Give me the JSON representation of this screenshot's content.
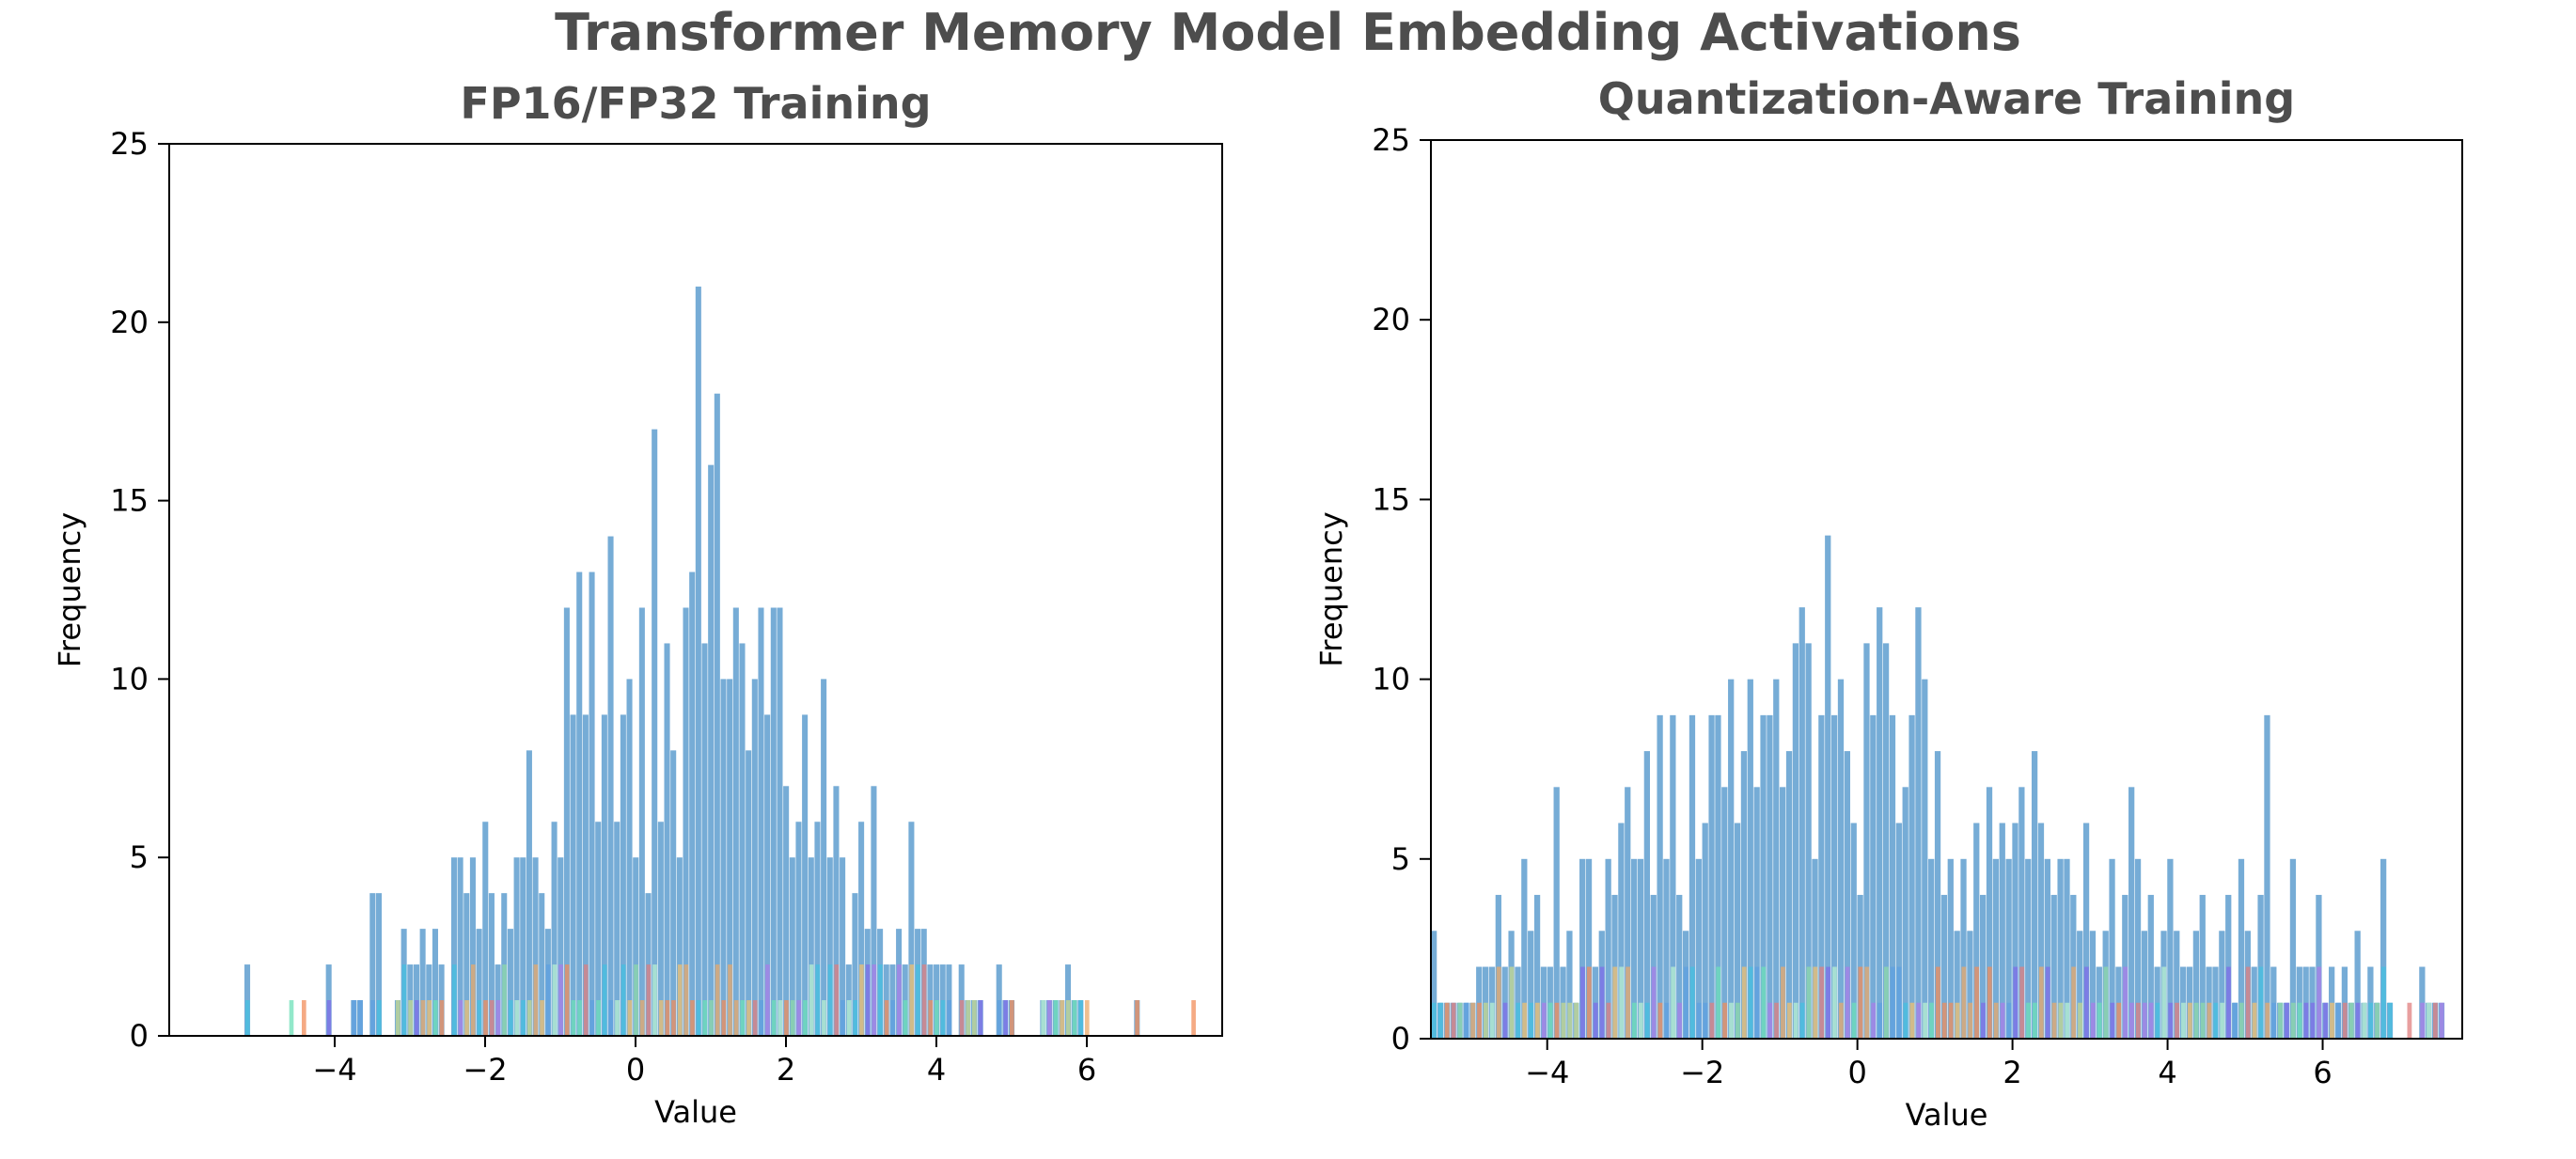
{
  "figure": {
    "title": "Transformer Memory Model Embedding Activations"
  },
  "palette": {
    "base": "#6fa8d4",
    "strips": [
      "#f28e5b",
      "#e9a96b",
      "#c6d88f",
      "#8fd9a8",
      "#6ee0b8",
      "#45c0e0",
      "#7f6ee8",
      "#a97fe8",
      "#e07f7f",
      "#f0c070",
      "#b8f0d0",
      "#5fa0e0"
    ]
  },
  "chart_data": [
    {
      "type": "bar",
      "title": "FP16/FP32 Training",
      "xlabel": "Value",
      "ylabel": "Frequency",
      "xlim": [
        -6.2,
        7.8
      ],
      "ylim": [
        0,
        25
      ],
      "xticks": [
        -4,
        -2,
        0,
        2,
        4,
        6
      ],
      "xtick_labels": [
        "−4",
        "−2",
        "0",
        "2",
        "4",
        "6"
      ],
      "yticks": [
        0,
        5,
        10,
        15,
        20,
        25
      ],
      "ytick_labels": [
        "0",
        "5",
        "10",
        "15",
        "20",
        "25"
      ],
      "grid": false,
      "series": [
        {
          "bin_start": -5.2,
          "bin_width": 0.0833,
          "values": [
            2,
            0,
            0,
            0,
            0,
            0,
            0,
            0,
            0,
            0,
            0,
            0,
            0,
            2,
            0,
            0,
            0,
            1,
            1,
            0,
            4,
            4,
            0,
            0,
            1,
            3,
            2,
            2,
            3,
            2,
            3,
            2,
            0,
            5,
            5,
            4,
            5,
            3,
            6,
            4,
            2,
            4,
            3,
            5,
            5,
            8,
            5,
            4,
            3,
            6,
            5,
            12,
            9,
            13,
            9,
            13,
            6,
            9,
            14,
            6,
            9,
            10,
            5,
            12,
            4,
            17,
            6,
            11,
            8,
            5,
            12,
            13,
            21,
            11,
            16,
            18,
            10,
            10,
            12,
            11,
            8,
            10,
            12,
            9,
            12,
            12,
            7,
            5,
            6,
            9,
            5,
            6,
            10,
            5,
            7,
            5,
            2,
            4,
            6,
            3,
            7,
            3,
            2,
            2,
            3,
            2,
            6,
            3,
            3,
            2,
            2,
            2,
            2,
            0,
            2,
            1,
            1,
            1,
            0,
            0,
            2,
            1,
            1,
            0,
            0,
            0,
            0,
            1,
            1,
            1,
            1,
            2,
            1,
            1,
            0,
            0,
            0,
            0,
            0,
            0,
            0,
            0,
            1,
            0,
            0,
            0,
            0,
            0,
            0,
            0,
            0,
            0,
            0,
            0,
            0,
            0,
            0,
            0,
            0,
            0,
            2
          ]
        }
      ]
    },
    {
      "type": "bar",
      "title": "Quantization-Aware Training",
      "xlabel": "Value",
      "ylabel": "Frequency",
      "xlim": [
        -5.5,
        7.8
      ],
      "ylim": [
        0,
        25
      ],
      "xticks": [
        -4,
        -2,
        0,
        2,
        4,
        6
      ],
      "xtick_labels": [
        "−4",
        "−2",
        "0",
        "2",
        "4",
        "6"
      ],
      "yticks": [
        0,
        5,
        10,
        15,
        20,
        25
      ],
      "ytick_labels": [
        "0",
        "5",
        "10",
        "15",
        "20",
        "25"
      ],
      "grid": false,
      "series": [
        {
          "bin_start": -5.5,
          "bin_width": 0.0833,
          "values": [
            3,
            1,
            1,
            1,
            1,
            1,
            1,
            2,
            2,
            2,
            4,
            2,
            3,
            2,
            5,
            3,
            4,
            2,
            2,
            7,
            2,
            3,
            1,
            5,
            5,
            2,
            3,
            5,
            4,
            6,
            7,
            5,
            5,
            8,
            4,
            9,
            5,
            9,
            4,
            3,
            9,
            5,
            6,
            9,
            9,
            7,
            10,
            6,
            8,
            10,
            7,
            9,
            9,
            10,
            7,
            8,
            11,
            12,
            11,
            5,
            9,
            14,
            9,
            10,
            8,
            6,
            4,
            11,
            9,
            12,
            11,
            9,
            6,
            7,
            9,
            12,
            10,
            5,
            8,
            4,
            5,
            3,
            5,
            3,
            6,
            4,
            7,
            5,
            6,
            5,
            6,
            7,
            5,
            8,
            6,
            5,
            4,
            5,
            5,
            4,
            3,
            6,
            3,
            2,
            3,
            5,
            2,
            4,
            7,
            5,
            3,
            4,
            2,
            3,
            5,
            3,
            2,
            2,
            3,
            4,
            2,
            2,
            3,
            4,
            1,
            5,
            3,
            2,
            4,
            9,
            2,
            1,
            1,
            5,
            2,
            2,
            2,
            4,
            1,
            2,
            1,
            2,
            1,
            3,
            1,
            2,
            1,
            5,
            1,
            0,
            0,
            0,
            0,
            2,
            1,
            1,
            1,
            0,
            0,
            0,
            0,
            0,
            0,
            0,
            1,
            1,
            0,
            0,
            1,
            0,
            1,
            0,
            3,
            1,
            1,
            1,
            1
          ]
        }
      ]
    }
  ]
}
